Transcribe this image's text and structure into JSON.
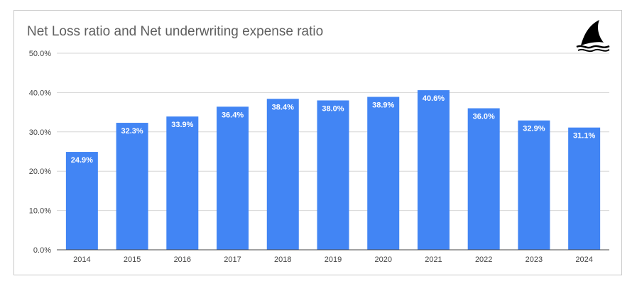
{
  "chart_data": {
    "type": "bar",
    "title": "Net Loss ratio and Net underwriting expense ratio",
    "categories": [
      "2014",
      "2015",
      "2016",
      "2017",
      "2018",
      "2019",
      "2020",
      "2021",
      "2022",
      "2023",
      "2024"
    ],
    "values": [
      24.9,
      32.3,
      33.9,
      36.4,
      38.4,
      38.0,
      38.9,
      40.6,
      36.0,
      32.9,
      31.1
    ],
    "data_labels": [
      "24.9%",
      "32.3%",
      "33.9%",
      "36.4%",
      "38.4%",
      "38.0%",
      "38.9%",
      "40.6%",
      "36.0%",
      "32.9%",
      "31.1%"
    ],
    "y_ticks": [
      0,
      10,
      20,
      30,
      40,
      50
    ],
    "y_tick_labels": [
      "0.0%",
      "10.0%",
      "20.0%",
      "30.0%",
      "40.0%",
      "50.0%"
    ],
    "ylim": [
      0,
      50
    ],
    "xlabel": "",
    "ylabel": "",
    "grid": true,
    "legend": "none",
    "bar_color": "#4285f4"
  },
  "logo": {
    "icon": "shark-fin-logo-icon"
  }
}
